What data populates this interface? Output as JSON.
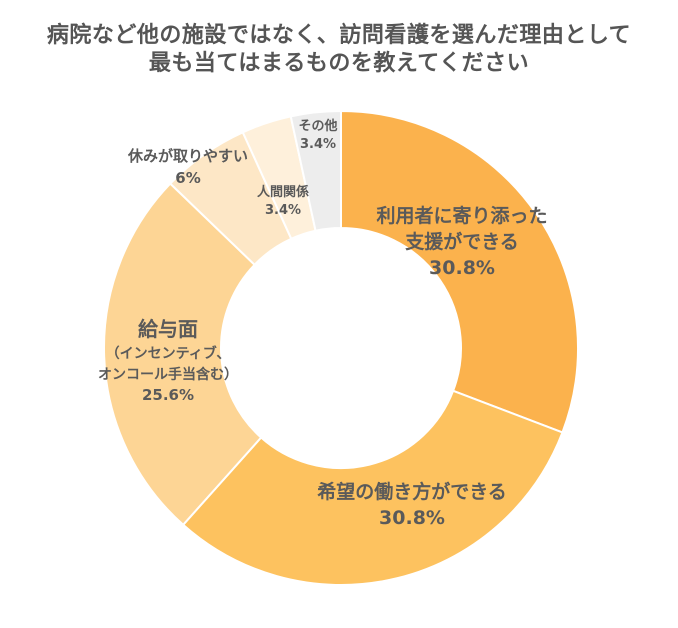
{
  "chart_data": {
    "type": "pie",
    "title_lines": [
      "病院など他の施設ではなく、訪問看護を選んだ理由として",
      "最も当てはまるものを教えてください"
    ],
    "unit": "%",
    "slices": [
      {
        "name_lines": [
          "利用者に寄り添った",
          "支援ができる"
        ],
        "value": 30.8,
        "value_label": "30.8%",
        "color": "#fbb24d"
      },
      {
        "name_lines": [
          "希望の働き方ができる"
        ],
        "value": 30.8,
        "value_label": "30.8%",
        "color": "#fdc25f"
      },
      {
        "name_lines": [
          "給与面",
          "（インセンティブ、",
          "オンコール手当含む）"
        ],
        "value": 25.6,
        "value_label": "25.6%",
        "color": "#fdd595"
      },
      {
        "name_lines": [
          "休みが取りやすい"
        ],
        "value": 6,
        "value_label": "6%",
        "color": "#fde7c6"
      },
      {
        "name_lines": [
          "人間関係"
        ],
        "value": 3.4,
        "value_label": "3.4%",
        "color": "#fef0db"
      },
      {
        "name_lines": [
          "その他"
        ],
        "value": 3.4,
        "value_label": "3.4%",
        "color": "#ededed"
      }
    ]
  }
}
